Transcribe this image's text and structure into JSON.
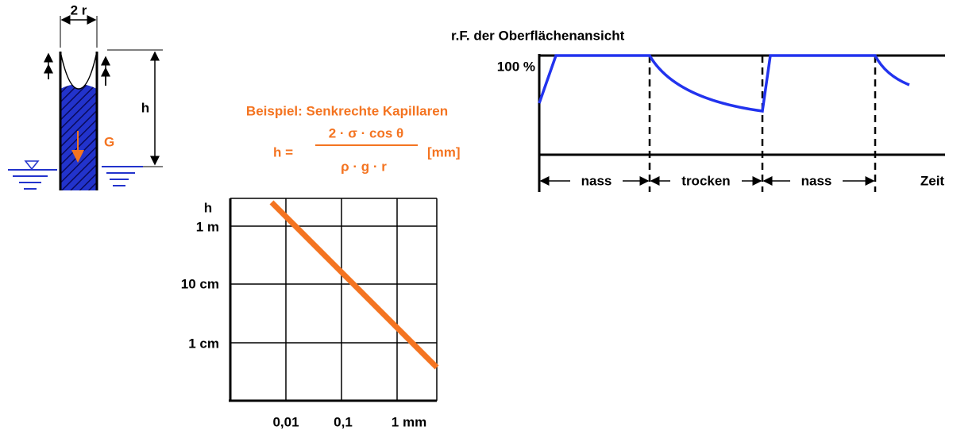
{
  "capillary": {
    "width_label": "2 r",
    "height_label": "h",
    "weight_label": "G"
  },
  "example": {
    "title": "Beispiel: Senkrechte Kapillaren",
    "lhs": "h =",
    "numerator": "2 · σ · cos θ",
    "denominator": "ρ ·  g · r",
    "unit": "[mm]"
  },
  "log_chart": {
    "y_axis_label": "h",
    "y_labels": [
      "1 m",
      "10 cm",
      "1 cm"
    ],
    "x_labels": [
      "0,01",
      "0,1",
      "1 mm"
    ]
  },
  "humidity_chart": {
    "title": "r.F. der Oberflächenansicht",
    "y_label": "100 %",
    "phases": [
      "nass",
      "trocken",
      "nass"
    ],
    "x_axis_label": "Zeit"
  }
}
